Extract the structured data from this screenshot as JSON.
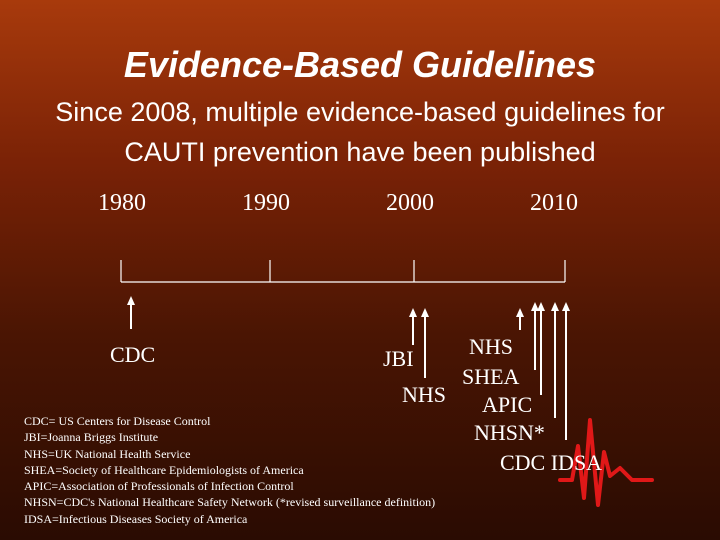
{
  "title": "Evidence-Based Guidelines",
  "subtitle": "Since 2008, multiple evidence-based guidelines for CAUTI prevention have been published",
  "timeline": {
    "years": [
      "1980",
      "1990",
      "2000",
      "2010"
    ],
    "organizations": {
      "cdc_1981": "CDC",
      "jbi": "JBI",
      "nhs_2001": "NHS",
      "nhs_2007": "NHS",
      "shea": "SHEA",
      "apic": "APIC",
      "nhsn": "NHSN*",
      "cdc_idsa": "CDC IDSA"
    }
  },
  "legend": [
    "CDC= US Centers for Disease Control",
    "JBI=Joanna Briggs Institute",
    "NHS=UK National Health Service",
    "SHEA=Society of Healthcare Epidemiologists of America",
    "APIC=Association of Professionals of Infection Control",
    "NHSN=CDC's National Healthcare Safety Network (*revised surveillance definition)",
    "IDSA=Infectious Diseases Society of America"
  ],
  "colors": {
    "background_top": "#a83a0c",
    "background_bottom": "#2a0b02",
    "text": "#ffffff",
    "ekg_line": "#e01818"
  }
}
